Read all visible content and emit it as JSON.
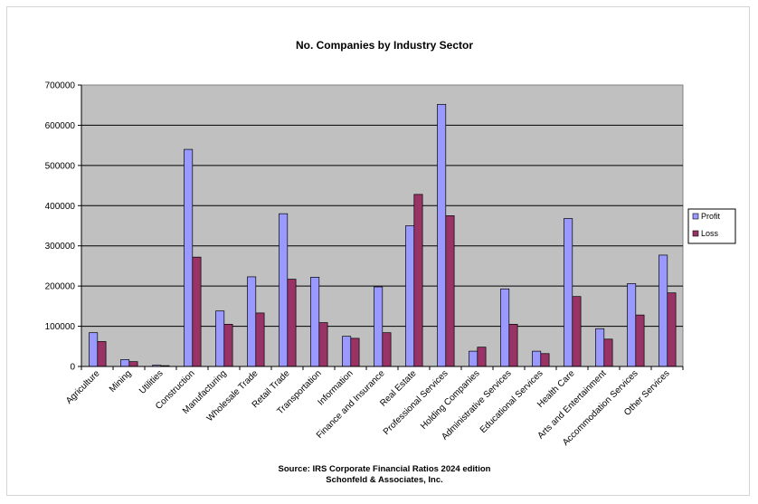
{
  "chart_data": {
    "type": "bar",
    "title": "No. Companies by Industry Sector",
    "categories": [
      "Agriculture",
      "Mining",
      "Utilities",
      "Construction",
      "Manufacturing",
      "Wholesale Trade",
      "Retail Trade",
      "Transportation",
      "Information",
      "Finance and Insurance",
      "Real Estate",
      "Professional Services",
      "Holding Companies",
      "Administrative Services",
      "Educational Services",
      "Health Care",
      "Arts and Entertainment",
      "Accommodation Services",
      "Other Services"
    ],
    "series": [
      {
        "name": "Profit",
        "color": "#9999ff",
        "values": [
          84000,
          17000,
          3000,
          540000,
          138000,
          223000,
          380000,
          222000,
          75000,
          198000,
          350000,
          652000,
          38000,
          193000,
          38000,
          368000,
          94000,
          206000,
          277000
        ]
      },
      {
        "name": "Loss",
        "color": "#993366",
        "values": [
          62000,
          12000,
          2000,
          272000,
          105000,
          133000,
          217000,
          109000,
          70000,
          84000,
          428000,
          375000,
          48000,
          105000,
          32000,
          174000,
          68000,
          128000,
          183000
        ]
      }
    ],
    "ylim": [
      0,
      700000
    ],
    "yticks": [
      "0",
      "100000",
      "200000",
      "300000",
      "400000",
      "500000",
      "600000",
      "700000"
    ],
    "grid": true,
    "plot_background": "#c0c0c0",
    "legend_position": "right"
  },
  "footer": {
    "line1": "Source: IRS Corporate Financial Ratios 2024 edition",
    "line2": "Schonfeld & Associates, Inc."
  }
}
